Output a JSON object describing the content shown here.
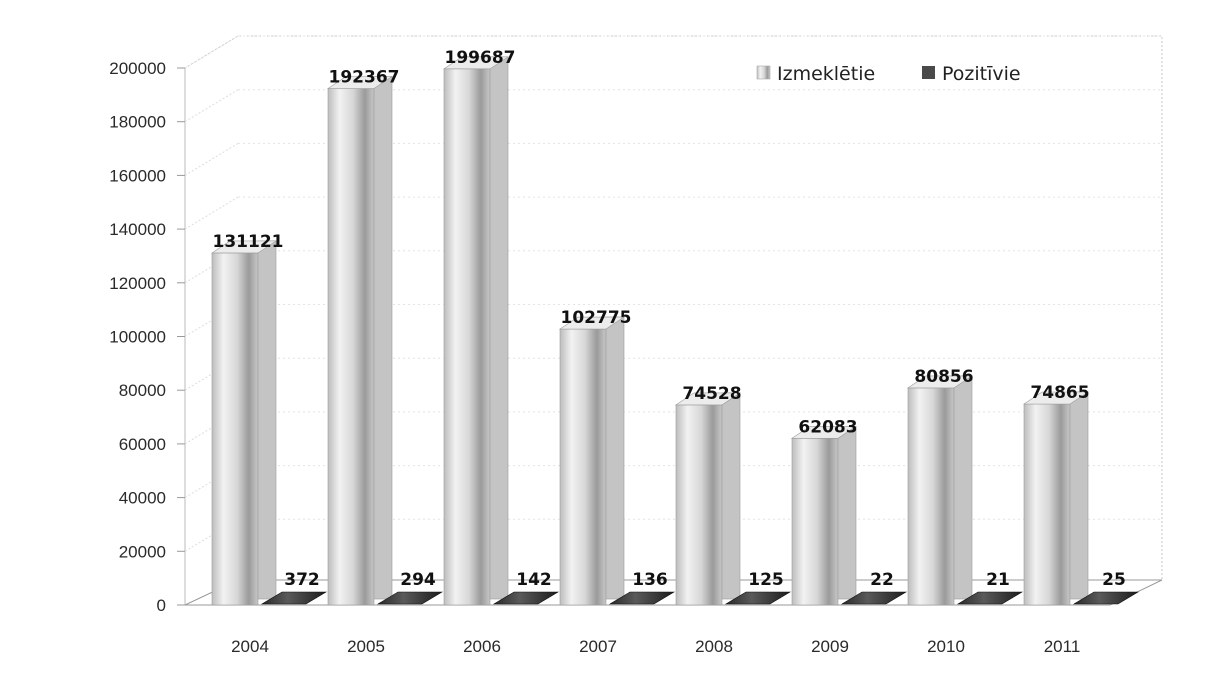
{
  "chart_data": {
    "type": "bar",
    "categories": [
      "2004",
      "2005",
      "2006",
      "2007",
      "2008",
      "2009",
      "2010",
      "2011"
    ],
    "series": [
      {
        "name": "Izmeklētie",
        "values": [
          131121,
          192367,
          199687,
          102775,
          74528,
          62083,
          80856,
          74865
        ],
        "color": "#d9d9d9"
      },
      {
        "name": "Pozitīvie",
        "values": [
          372,
          294,
          142,
          136,
          125,
          22,
          21,
          25
        ],
        "color": "#3a3a3a"
      }
    ],
    "y_ticks": [
      "0",
      "20000",
      "40000",
      "60000",
      "80000",
      "100000",
      "120000",
      "140000",
      "160000",
      "180000",
      "200000"
    ],
    "ylim": [
      0,
      200000
    ],
    "title": "",
    "xlabel": "",
    "ylabel": "",
    "legend_position": "top-right",
    "style": "3d-cylinder"
  }
}
